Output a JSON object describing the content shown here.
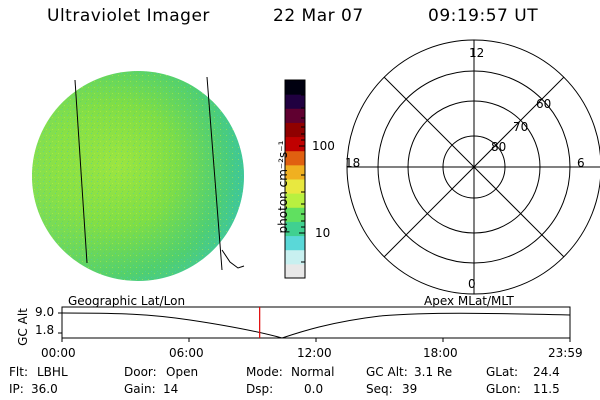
{
  "header": {
    "title": "Ultraviolet Imager",
    "date": "22 Mar 07",
    "time": "09:19:57 UT"
  },
  "colorbar": {
    "unit_label": "photon cm⁻²s⁻¹",
    "ticks": [
      "100",
      "10"
    ],
    "colors": [
      "#e8e8e8",
      "#c8f0f0",
      "#5ad8d8",
      "#40d090",
      "#60e060",
      "#b8f040",
      "#e8e840",
      "#f0b020",
      "#e06010",
      "#c00000",
      "#900000",
      "#600030",
      "#200040",
      "#000010"
    ]
  },
  "polar_plot": {
    "hour_labels": {
      "top": "12",
      "left": "18",
      "right": "6",
      "bottom": "0"
    },
    "lat_labels": [
      "60",
      "70",
      "80"
    ]
  },
  "timeline": {
    "left_label": "Geographic Lat/Lon",
    "right_label": "Apex MLat/MLT",
    "y_axis_title": "GC Alt",
    "y_ticks": [
      "9.0",
      "1.8"
    ],
    "x_ticks": [
      "00:00",
      "06:00",
      "12:00",
      "18:00",
      "23:59"
    ],
    "current_time_marker": "09:19:57",
    "marker_color": "#e00000"
  },
  "info": {
    "flt": {
      "label": "Flt:",
      "value": "LBHL"
    },
    "ip": {
      "label": "IP:",
      "value": "36.0"
    },
    "door": {
      "label": "Door:",
      "value": "Open"
    },
    "gain": {
      "label": "Gain:",
      "value": "14"
    },
    "mode": {
      "label": "Mode:",
      "value": "Normal"
    },
    "dsp": {
      "label": "Dsp:",
      "value": "0.0"
    },
    "gc_alt": {
      "label": "GC Alt:",
      "value": "3.1 Re"
    },
    "seq": {
      "label": "Seq:",
      "value": "39"
    },
    "glat": {
      "label": "GLat:",
      "value": "24.4"
    },
    "glon": {
      "label": "GLon:",
      "value": "11.5"
    }
  }
}
